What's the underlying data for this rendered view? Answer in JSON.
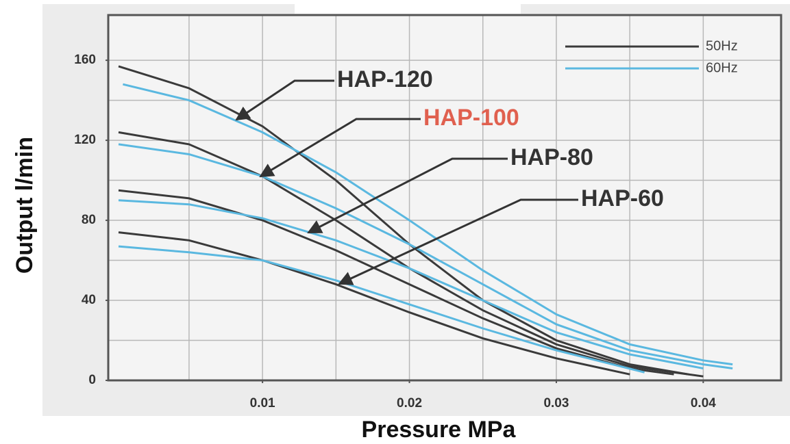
{
  "chart_data": {
    "type": "line",
    "xlabel": "Pressure MPa",
    "ylabel": "Output l/min",
    "xlim": [
      -0.0005,
      0.0453
    ],
    "ylim": [
      0,
      182.6
    ],
    "xticks": [
      0.01,
      0.02,
      0.03,
      0.04
    ],
    "yticks": [
      0,
      40,
      80,
      120,
      160
    ],
    "xgrid": [
      0.005,
      0.01,
      0.015,
      0.02,
      0.025,
      0.03,
      0.035,
      0.04
    ],
    "ygrid": [
      20,
      40,
      60,
      80,
      100,
      120,
      140,
      160
    ],
    "grid": true,
    "legend_position": "upper right",
    "annotations": [
      {
        "text": "HAP-120",
        "color": "#333333"
      },
      {
        "text": "HAP-100",
        "color": "#e0604f"
      },
      {
        "text": "HAP-80",
        "color": "#333333"
      },
      {
        "text": "HAP-60",
        "color": "#333333"
      }
    ],
    "series": [
      {
        "name": "50Hz",
        "color": "#3a3a3a",
        "x": [
          0.0002,
          0.005,
          0.01,
          0.015,
          0.02,
          0.025,
          0.03,
          0.035,
          0.039
        ],
        "values": [
          157,
          146,
          127,
          100,
          68,
          40,
          20,
          8,
          3
        ]
      },
      {
        "name": "60Hz",
        "color": "#5ab8e0",
        "x": [
          0.0005,
          0.005,
          0.01,
          0.015,
          0.02,
          0.025,
          0.03,
          0.035,
          0.04,
          0.042
        ],
        "values": [
          148,
          140,
          124,
          104,
          80,
          55,
          33,
          18,
          10,
          8
        ]
      },
      {
        "name": "50Hz",
        "color": "#3a3a3a",
        "x": [
          0.0002,
          0.005,
          0.01,
          0.015,
          0.02,
          0.025,
          0.03,
          0.035,
          0.04
        ],
        "values": [
          124,
          118,
          102,
          80,
          56,
          35,
          18,
          7,
          2
        ]
      },
      {
        "name": "60Hz",
        "color": "#5ab8e0",
        "x": [
          0.0002,
          0.005,
          0.01,
          0.015,
          0.02,
          0.025,
          0.03,
          0.035,
          0.04,
          0.042
        ],
        "values": [
          118,
          113,
          102,
          86,
          68,
          48,
          28,
          15,
          8,
          6
        ]
      },
      {
        "name": "50Hz",
        "color": "#3a3a3a",
        "x": [
          0.0002,
          0.005,
          0.01,
          0.015,
          0.02,
          0.025,
          0.03,
          0.035,
          0.038
        ],
        "values": [
          95,
          91,
          80,
          65,
          48,
          31,
          16,
          6,
          3
        ]
      },
      {
        "name": "60Hz",
        "color": "#5ab8e0",
        "x": [
          0.0002,
          0.005,
          0.01,
          0.015,
          0.02,
          0.025,
          0.03,
          0.035,
          0.04
        ],
        "values": [
          90,
          88,
          81,
          70,
          56,
          40,
          24,
          13,
          6
        ]
      },
      {
        "name": "50Hz",
        "color": "#3a3a3a",
        "x": [
          0.0002,
          0.005,
          0.01,
          0.015,
          0.02,
          0.025,
          0.03,
          0.035
        ],
        "values": [
          74,
          70,
          60,
          48,
          34,
          21,
          11,
          3
        ]
      },
      {
        "name": "60Hz",
        "color": "#5ab8e0",
        "x": [
          0.0002,
          0.005,
          0.01,
          0.015,
          0.02,
          0.025,
          0.03,
          0.036
        ],
        "values": [
          67,
          64,
          60,
          50,
          38,
          26,
          15,
          4
        ]
      }
    ]
  }
}
